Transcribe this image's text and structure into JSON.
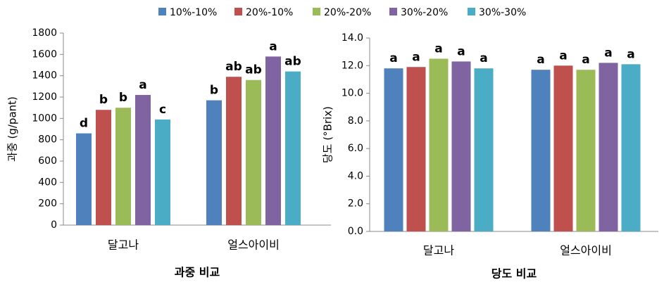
{
  "legend": [
    {
      "name": "10%-10%",
      "color": "#4f81bd"
    },
    {
      "name": "20%-10%",
      "color": "#c0504d"
    },
    {
      "name": "20%-20%",
      "color": "#9bbb59"
    },
    {
      "name": "30%-20%",
      "color": "#8064a2"
    },
    {
      "name": "30%-30%",
      "color": "#4bacc6"
    }
  ],
  "chart_data": [
    {
      "type": "bar",
      "x_label": "과중 비교",
      "y_label": "과중 (g/pant)",
      "categories": [
        "달고나",
        "얼스아이비"
      ],
      "ylim": [
        0,
        1800
      ],
      "yticks": [
        0,
        200,
        400,
        600,
        800,
        1000,
        1200,
        1400,
        1600,
        1800
      ],
      "series": [
        {
          "values": [
            860,
            1170
          ],
          "letters": [
            "d",
            "b"
          ]
        },
        {
          "values": [
            1080,
            1390
          ],
          "letters": [
            "b",
            "ab"
          ]
        },
        {
          "values": [
            1100,
            1360
          ],
          "letters": [
            "b",
            "ab"
          ]
        },
        {
          "values": [
            1220,
            1580
          ],
          "letters": [
            "a",
            "a"
          ]
        },
        {
          "values": [
            990,
            1440
          ],
          "letters": [
            "c",
            "ab"
          ]
        }
      ]
    },
    {
      "type": "bar",
      "x_label": "당도 비교",
      "y_label": "당도 (°Brix)",
      "categories": [
        "달고나",
        "얼스아이비"
      ],
      "ylim": [
        0,
        14
      ],
      "yticks": [
        {
          "value": 0,
          "label": "0.0"
        },
        {
          "value": 2,
          "label": "2.0"
        },
        {
          "value": 4,
          "label": "4.0"
        },
        {
          "value": 6,
          "label": "6.0"
        },
        {
          "value": 8,
          "label": "8.0"
        },
        {
          "value": 10,
          "label": "10.0"
        },
        {
          "value": 12,
          "label": "12.0"
        },
        {
          "value": 14,
          "label": "14.0"
        }
      ],
      "series": [
        {
          "values": [
            11.8,
            11.7
          ],
          "letters": [
            "a",
            "a"
          ]
        },
        {
          "values": [
            11.9,
            12.0
          ],
          "letters": [
            "a",
            "a"
          ]
        },
        {
          "values": [
            12.5,
            11.7
          ],
          "letters": [
            "a",
            "a"
          ]
        },
        {
          "values": [
            12.3,
            12.2
          ],
          "letters": [
            "a",
            "a"
          ]
        },
        {
          "values": [
            11.8,
            12.1
          ],
          "letters": [
            "a",
            "a"
          ]
        }
      ]
    }
  ]
}
